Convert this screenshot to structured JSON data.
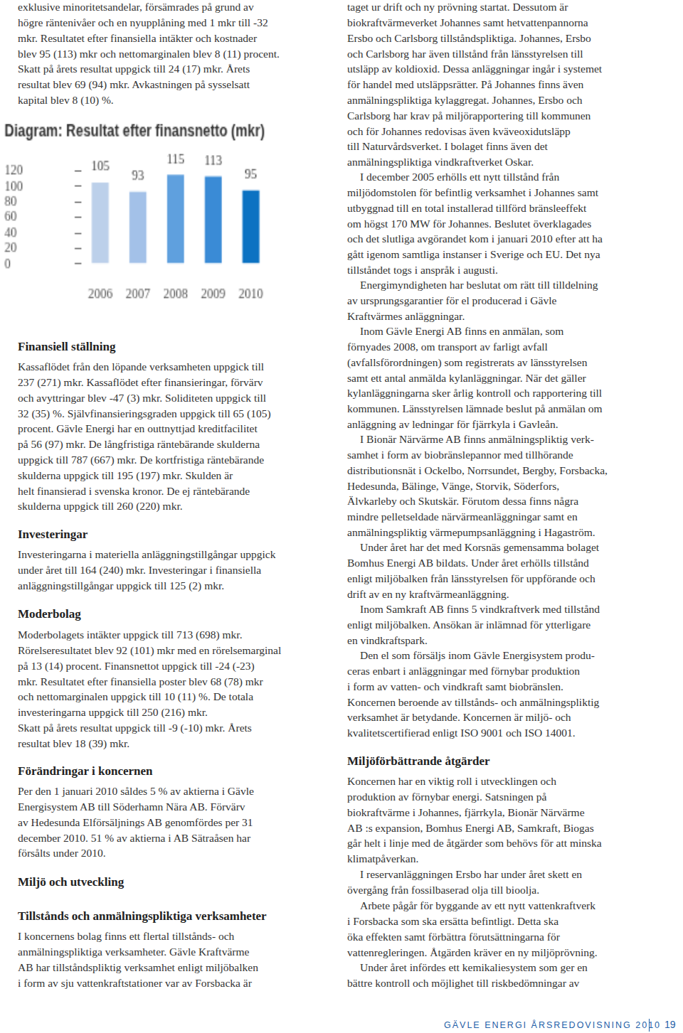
{
  "left_column": [
    {
      "lines": [
        "exklusive minoritetsandelar, försämrades på grund av",
        "högre räntenivåer och en nyupplåning med 1 mkr till -32",
        "mkr. Resultatet efter finansiella intäkter och kostnader",
        "blev 95 (113) mkr och nettomarginalen blev 8 (11) procent.",
        "Skatt på årets resultat uppgick till 24 (17) mkr. Årets",
        "resultat blev 69 (94) mkr. Avkastningen på sysselsatt",
        "kapital blev 8 (10) %."
      ]
    },
    {
      "heading": "Finansiell ställning"
    },
    {
      "lines": [
        "Kassaflödet från den löpande verksamheten uppgick till",
        "237 (271) mkr. Kassaflödet efter finansieringar, förvärv",
        "och avyttringar blev -47 (3) mkr. Soliditeten uppgick till",
        "32 (35) %. Självfinansieringsgraden uppgick till 65 (105)",
        "procent. Gävle Energi har en outtnyttjad kreditfacilitet",
        "på 56 (97) mkr. De långfristiga räntebärande skulderna",
        "uppgick till 787 (667) mkr. De kortfristiga räntebärande",
        "skulderna uppgick till 195 (197) mkr. Skulden är",
        "helt finansierad i svenska kronor. De ej räntebärande",
        "skulderna uppgick till 260 (220) mkr."
      ]
    },
    {
      "heading": "Investeringar"
    },
    {
      "lines": [
        "Investeringarna i materiella anläggningstillgångar uppgick",
        "under året till 164 (240) mkr. Investeringar i finansiella",
        "anläggningstillgångar uppgick till 125 (2) mkr."
      ]
    },
    {
      "heading": "Moderbolag"
    },
    {
      "lines": [
        "Moderbolagets intäkter uppgick till 713 (698) mkr.",
        "Rörelseresultatet blev 92 (101) mkr med en rörelsemarginal",
        "på 13 (14) procent. Finansnettot uppgick till -24 (-23)",
        "mkr. Resultatet efter finansiella poster blev 68 (78) mkr",
        "och nettomarginalen uppgick till 10 (11) %. De totala",
        "investeringarna uppgick till 250 (216) mkr.",
        "Skatt på årets resultat uppgick till -9 (-10) mkr. Årets",
        "resultat blev 18 (39) mkr."
      ]
    },
    {
      "heading": "Förändringar i koncernen"
    },
    {
      "lines": [
        "Per den 1 januari 2010 såldes 5 % av aktierna i Gävle",
        "Energisystem AB till Söderhamn Nära AB. Förvärv",
        "av Hedesunda Elförsäljnings AB genomfördes per 31",
        "december 2010. 51 % av aktierna i AB Sätraåsen har",
        "försålts under 2010."
      ]
    },
    {
      "heading": "Miljö och utveckling"
    },
    {
      "heading": "Tillstånds och anmälningspliktiga verksamheter"
    },
    {
      "lines": [
        "I koncernens bolag finns ett flertal tillstånds- och",
        "anmälningspliktiga verksamheter. Gävle Kraftvärme",
        "AB har tillståndspliktig verksamhet enligt miljöbalken",
        "i form av sju vattenkraftstationer var av Forsbacka är"
      ]
    }
  ],
  "right_column": [
    {
      "lines": [
        "taget ur drift och ny prövning startat. Dessutom är",
        "biokraftvärmeverket Johannes samt hetvattenpannorna",
        "Ersbo och Carlsborg tillståndspliktiga. Johannes, Ersbo",
        "och Carlsborg har även tillstånd från länsstyrelsen till",
        "utsläpp av koldioxid. Dessa anläggningar ingår i systemet",
        "för handel med utsläppsrätter. På Johannes finns även",
        "anmälningspliktiga kylaggregat. Johannes, Ersbo och",
        "Carlsborg har krav på miljörapportering till kommunen",
        "och för Johannes redovisas även kväveoxidutsläpp",
        "till Naturvårdsverket. I bolaget finns även det",
        "anmälningspliktiga vindkraftverket Oskar."
      ]
    },
    {
      "lines": [
        "I december 2005 erhölls ett nytt tillstånd från",
        "miljödomstolen för befintlig verksamhet i Johannes samt",
        "utbyggnad till en total installerad tillförd bränsleeffekt",
        "om högst 170 MW för Johannes. Beslutet överklagades",
        "och det slutliga avgörandet kom i januari 2010 efter att ha",
        "gått igenom samtliga instanser i Sverige och EU. Det nya",
        "tillståndet togs i anspråk i augusti."
      ]
    },
    {
      "lines": [
        "Energimyndigheten har beslutat om rätt till tilldelning",
        "av ursprungsgarantier för el producerad i Gävle",
        "Kraftvärmes anläggningar."
      ]
    },
    {
      "lines": [
        "Inom Gävle Energi AB finns en anmälan, som",
        "förnyades 2008, om transport av farligt avfall",
        "(avfallsförordningen) som registrerats av länsstyrelsen",
        "samt ett antal anmälda kylanläggningar. När det gäller",
        "kylanläggningarna sker årlig kontroll och rapportering till",
        "kommunen. Länsstyrelsen lämnade beslut på anmälan om",
        "anläggning av ledningar för fjärrkyla i Gavleån."
      ]
    },
    {
      "lines": [
        "I Bionär Närvärme AB finns anmälningspliktig verk-",
        "samhet i form av biobränslepannor med tillhörande",
        "distributionsnät i Ockelbo, Norrsundet, Bergby, Forsbacka,",
        "Hedesunda, Bälinge, Vänge, Storvik, Söderfors,",
        "Älvkarleby och Skutskär. Förutom dessa finns några",
        "mindre pelletseldade närvärmeanläggningar samt en",
        "anmälningspliktig värmepumpsanläggning i Hagaström."
      ]
    },
    {
      "lines": [
        "Under året har det med Korsnäs gemensamma bolaget",
        "Bomhus Energi AB bildats. Under året erhölls tillstånd",
        "enligt miljöbalken från länsstyrelsen för uppförande och",
        "drift av en ny kraftvärmeanläggning."
      ]
    },
    {
      "lines": [
        "Inom Samkraft AB finns 5 vindkraftverk med tillstånd",
        "enligt miljöbalken. Ansökan är inlämnad för ytterligare",
        "en vindkraftspark."
      ]
    },
    {
      "lines": [
        "Den el som försäljs inom Gävle Energisystem produ-",
        "ceras enbart i anläggningar med förnybar produktion",
        "i form av vatten- och vindkraft samt biobränslen.",
        "Koncernen beroende av tillstånds- och anmälningspliktig",
        "verksamhet är betydande. Koncernen är miljö- och",
        "kvalitetscertifierad enligt ISO 9001 och ISO 14001."
      ]
    },
    {
      "heading": "Miljöförbättrande åtgärder"
    },
    {
      "lines": [
        "Koncernen har en viktig roll i utvecklingen och",
        "produktion av förnybar energi. Satsningen på",
        "biokraftvärme i Johannes, fjärrkyla, Bionär Närvärme",
        "AB :s expansion, Bomhus Energi AB, Samkraft, Biogas",
        "går helt i linje med de åtgärder som behövs för att minska",
        "klimatpåverkan."
      ]
    },
    {
      "lines": [
        "I reservanläggningen Ersbo har under året skett en",
        "övergång från fossilbaserad olja till bioolja."
      ]
    },
    {
      "lines": [
        "Arbete pågår för byggande av ett nytt vattenkraftverk",
        "i Forsbacka som ska ersätta befintligt. Detta ska",
        "öka effekten samt förbättra förutsättningarna för",
        "vattenregleringen. Åtgärden kräver en ny miljöprövning."
      ]
    },
    {
      "lines": [
        "Under året infördes ett kemikaliesystem som ger en",
        "bättre kontroll och möjlighet till riskbedömningar av"
      ]
    }
  ],
  "chart_data": {
    "type": "bar",
    "title": "Diagram: Resultat efter finansnetto (mkr)",
    "categories": [
      "2006",
      "2007",
      "2008",
      "2009",
      "2010"
    ],
    "values": [
      105,
      93,
      115,
      113,
      95
    ],
    "colors": [
      "#bcd0ea",
      "#a3c1e8",
      "#5fa0de",
      "#3a8bd6",
      "#0c72c2"
    ],
    "ylim": [
      0,
      120
    ],
    "yticks": [
      0,
      20,
      40,
      60,
      80,
      100,
      120
    ],
    "grid": false,
    "data_labels": true
  },
  "footer": {
    "publication": "GÄVLE ENERGI ÅRSREDOVISNING 2010",
    "page": 19
  }
}
